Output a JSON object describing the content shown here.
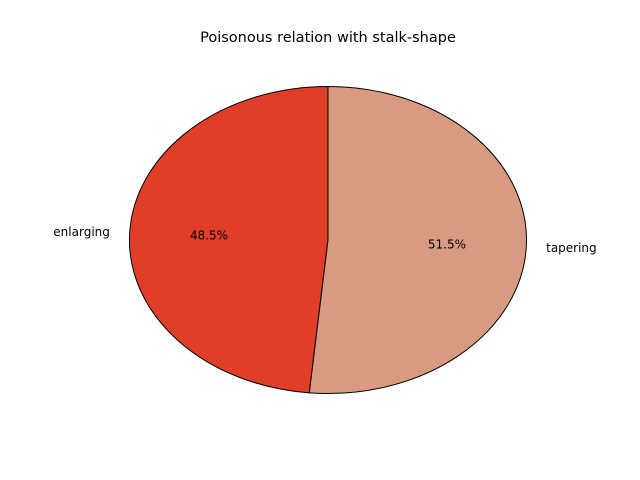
{
  "chart_data": {
    "type": "pie",
    "title": "Poisonous relation with stalk-shape",
    "labels": [
      "enlarging",
      "tapering"
    ],
    "values": [
      48.5,
      51.5
    ],
    "percent_labels": [
      "48.5%",
      "51.5%"
    ],
    "colors": [
      "#e03e28",
      "#d89b82"
    ],
    "edge_color": "#000000",
    "start_angle_deg": 90,
    "direction": "counterclockwise",
    "legend": "none",
    "grid": false
  }
}
